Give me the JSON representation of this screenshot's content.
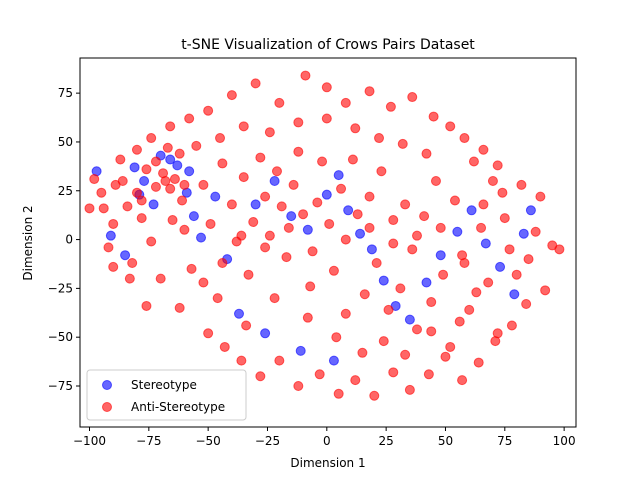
{
  "chart_data": {
    "type": "scatter",
    "title": "t-SNE Visualization of Crows Pairs Dataset",
    "xlabel": "Dimension 1",
    "ylabel": "Dimension 2",
    "xlim": [
      -104,
      105
    ],
    "ylim": [
      -96,
      93
    ],
    "xticks": [
      -100,
      -75,
      -50,
      -25,
      0,
      25,
      50,
      75,
      100
    ],
    "yticks": [
      -75,
      -50,
      -25,
      0,
      25,
      50,
      75
    ],
    "grid": false,
    "legend_position": "lower-left",
    "series": [
      {
        "name": "Stereotype",
        "color": "#0000ff",
        "alpha": 0.6,
        "points": [
          [
            -97,
            35
          ],
          [
            -91,
            2
          ],
          [
            -85,
            -8
          ],
          [
            -81,
            37
          ],
          [
            -79,
            23
          ],
          [
            -77,
            30
          ],
          [
            -73,
            18
          ],
          [
            -70,
            43
          ],
          [
            -66,
            41
          ],
          [
            -63,
            38
          ],
          [
            -58,
            35
          ],
          [
            -59,
            24
          ],
          [
            -56,
            12
          ],
          [
            -53,
            1
          ],
          [
            -47,
            22
          ],
          [
            -42,
            -10
          ],
          [
            -30,
            18
          ],
          [
            -22,
            30
          ],
          [
            -15,
            12
          ],
          [
            -8,
            5
          ],
          [
            0,
            23
          ],
          [
            5,
            33
          ],
          [
            9,
            15
          ],
          [
            14,
            3
          ],
          [
            19,
            -5
          ],
          [
            24,
            -21
          ],
          [
            29,
            -34
          ],
          [
            35,
            -41
          ],
          [
            42,
            -22
          ],
          [
            48,
            -8
          ],
          [
            55,
            4
          ],
          [
            61,
            15
          ],
          [
            67,
            -2
          ],
          [
            73,
            -14
          ],
          [
            79,
            -28
          ],
          [
            83,
            3
          ],
          [
            86,
            15
          ],
          [
            -37,
            -38
          ],
          [
            -26,
            -48
          ],
          [
            -11,
            -57
          ],
          [
            3,
            -62
          ]
        ]
      },
      {
        "name": "Anti-Stereotype",
        "color": "#ff0000",
        "alpha": 0.6,
        "points": [
          [
            -98,
            31
          ],
          [
            -94,
            16
          ],
          [
            -92,
            -4
          ],
          [
            -89,
            28
          ],
          [
            -87,
            41
          ],
          [
            -84,
            17
          ],
          [
            -82,
            -12
          ],
          [
            -80,
            46
          ],
          [
            -78,
            11
          ],
          [
            -76,
            36
          ],
          [
            -74,
            -1
          ],
          [
            -72,
            27
          ],
          [
            -69,
            34
          ],
          [
            -67,
            47
          ],
          [
            -64,
            31
          ],
          [
            -61,
            20
          ],
          [
            -60,
            5
          ],
          [
            -57,
            -15
          ],
          [
            -55,
            48
          ],
          [
            -52,
            28
          ],
          [
            -49,
            8
          ],
          [
            -46,
            -30
          ],
          [
            -44,
            39
          ],
          [
            -40,
            18
          ],
          [
            -38,
            -1
          ],
          [
            -35,
            32
          ],
          [
            -33,
            -18
          ],
          [
            -31,
            9
          ],
          [
            -28,
            42
          ],
          [
            -26,
            22
          ],
          [
            -24,
            2
          ],
          [
            -21,
            35
          ],
          [
            -19,
            17
          ],
          [
            -17,
            -9
          ],
          [
            -14,
            28
          ],
          [
            -12,
            45
          ],
          [
            -10,
            13
          ],
          [
            -7,
            -24
          ],
          [
            -4,
            19
          ],
          [
            -2,
            40
          ],
          [
            1,
            8
          ],
          [
            3,
            -16
          ],
          [
            6,
            26
          ],
          [
            8,
            -38
          ],
          [
            11,
            41
          ],
          [
            13,
            13
          ],
          [
            16,
            -28
          ],
          [
            18,
            22
          ],
          [
            21,
            -12
          ],
          [
            23,
            35
          ],
          [
            26,
            -36
          ],
          [
            28,
            10
          ],
          [
            31,
            -25
          ],
          [
            33,
            18
          ],
          [
            36,
            -5
          ],
          [
            38,
            -46
          ],
          [
            41,
            12
          ],
          [
            44,
            -32
          ],
          [
            46,
            30
          ],
          [
            49,
            -18
          ],
          [
            52,
            -55
          ],
          [
            54,
            20
          ],
          [
            57,
            -8
          ],
          [
            60,
            -36
          ],
          [
            62,
            40
          ],
          [
            65,
            6
          ],
          [
            68,
            -22
          ],
          [
            70,
            30
          ],
          [
            72,
            -48
          ],
          [
            75,
            11
          ],
          [
            77,
            -5
          ],
          [
            80,
            -18
          ],
          [
            82,
            28
          ],
          [
            85,
            -10
          ],
          [
            88,
            4
          ],
          [
            90,
            22
          ],
          [
            92,
            -26
          ],
          [
            95,
            -3
          ],
          [
            98,
            -5
          ],
          [
            -95,
            24
          ],
          [
            -90,
            -14
          ],
          [
            -86,
            30
          ],
          [
            -70,
            -20
          ],
          [
            -65,
            10
          ],
          [
            -62,
            -35
          ],
          [
            -50,
            -48
          ],
          [
            -43,
            -55
          ],
          [
            -36,
            -62
          ],
          [
            -28,
            -70
          ],
          [
            -20,
            -62
          ],
          [
            -12,
            -75
          ],
          [
            -3,
            -69
          ],
          [
            5,
            -79
          ],
          [
            12,
            -72
          ],
          [
            20,
            -80
          ],
          [
            28,
            -68
          ],
          [
            35,
            -77
          ],
          [
            43,
            -69
          ],
          [
            50,
            -60
          ],
          [
            57,
            -72
          ],
          [
            64,
            -63
          ],
          [
            71,
            -52
          ],
          [
            78,
            -44
          ],
          [
            84,
            -33
          ],
          [
            -40,
            74
          ],
          [
            -30,
            80
          ],
          [
            -20,
            70
          ],
          [
            -9,
            84
          ],
          [
            0,
            78
          ],
          [
            8,
            70
          ],
          [
            18,
            76
          ],
          [
            27,
            68
          ],
          [
            36,
            73
          ],
          [
            45,
            63
          ],
          [
            52,
            58
          ],
          [
            58,
            52
          ],
          [
            66,
            46
          ],
          [
            72,
            38
          ],
          [
            -76,
            -34
          ],
          [
            -83,
            -20
          ],
          [
            -58,
            62
          ],
          [
            -50,
            66
          ],
          [
            -66,
            58
          ],
          [
            -34,
            -44
          ],
          [
            -22,
            -30
          ],
          [
            -8,
            -40
          ],
          [
            4,
            -50
          ],
          [
            15,
            -58
          ],
          [
            24,
            -52
          ],
          [
            33,
            -59
          ],
          [
            44,
            -47
          ],
          [
            56,
            -42
          ],
          [
            63,
            -27
          ],
          [
            -45,
            52
          ],
          [
            -35,
            58
          ],
          [
            -24,
            55
          ],
          [
            -12,
            60
          ],
          [
            0,
            62
          ],
          [
            12,
            57
          ],
          [
            22,
            52
          ],
          [
            32,
            49
          ],
          [
            42,
            44
          ],
          [
            -52,
            -22
          ],
          [
            -44,
            -12
          ],
          [
            -36,
            2
          ],
          [
            -26,
            -4
          ],
          [
            -16,
            6
          ],
          [
            -6,
            -6
          ],
          [
            8,
            0
          ],
          [
            18,
            6
          ],
          [
            28,
            -2
          ],
          [
            38,
            2
          ],
          [
            48,
            6
          ],
          [
            58,
            -12
          ],
          [
            66,
            18
          ],
          [
            74,
            24
          ],
          [
            -74,
            52
          ],
          [
            -66,
            26
          ],
          [
            -78,
            20
          ],
          [
            -90,
            8
          ],
          [
            -100,
            16
          ],
          [
            -62,
            44
          ],
          [
            -72,
            40
          ],
          [
            -68,
            30
          ],
          [
            -80,
            24
          ],
          [
            -60,
            28
          ]
        ]
      }
    ]
  }
}
